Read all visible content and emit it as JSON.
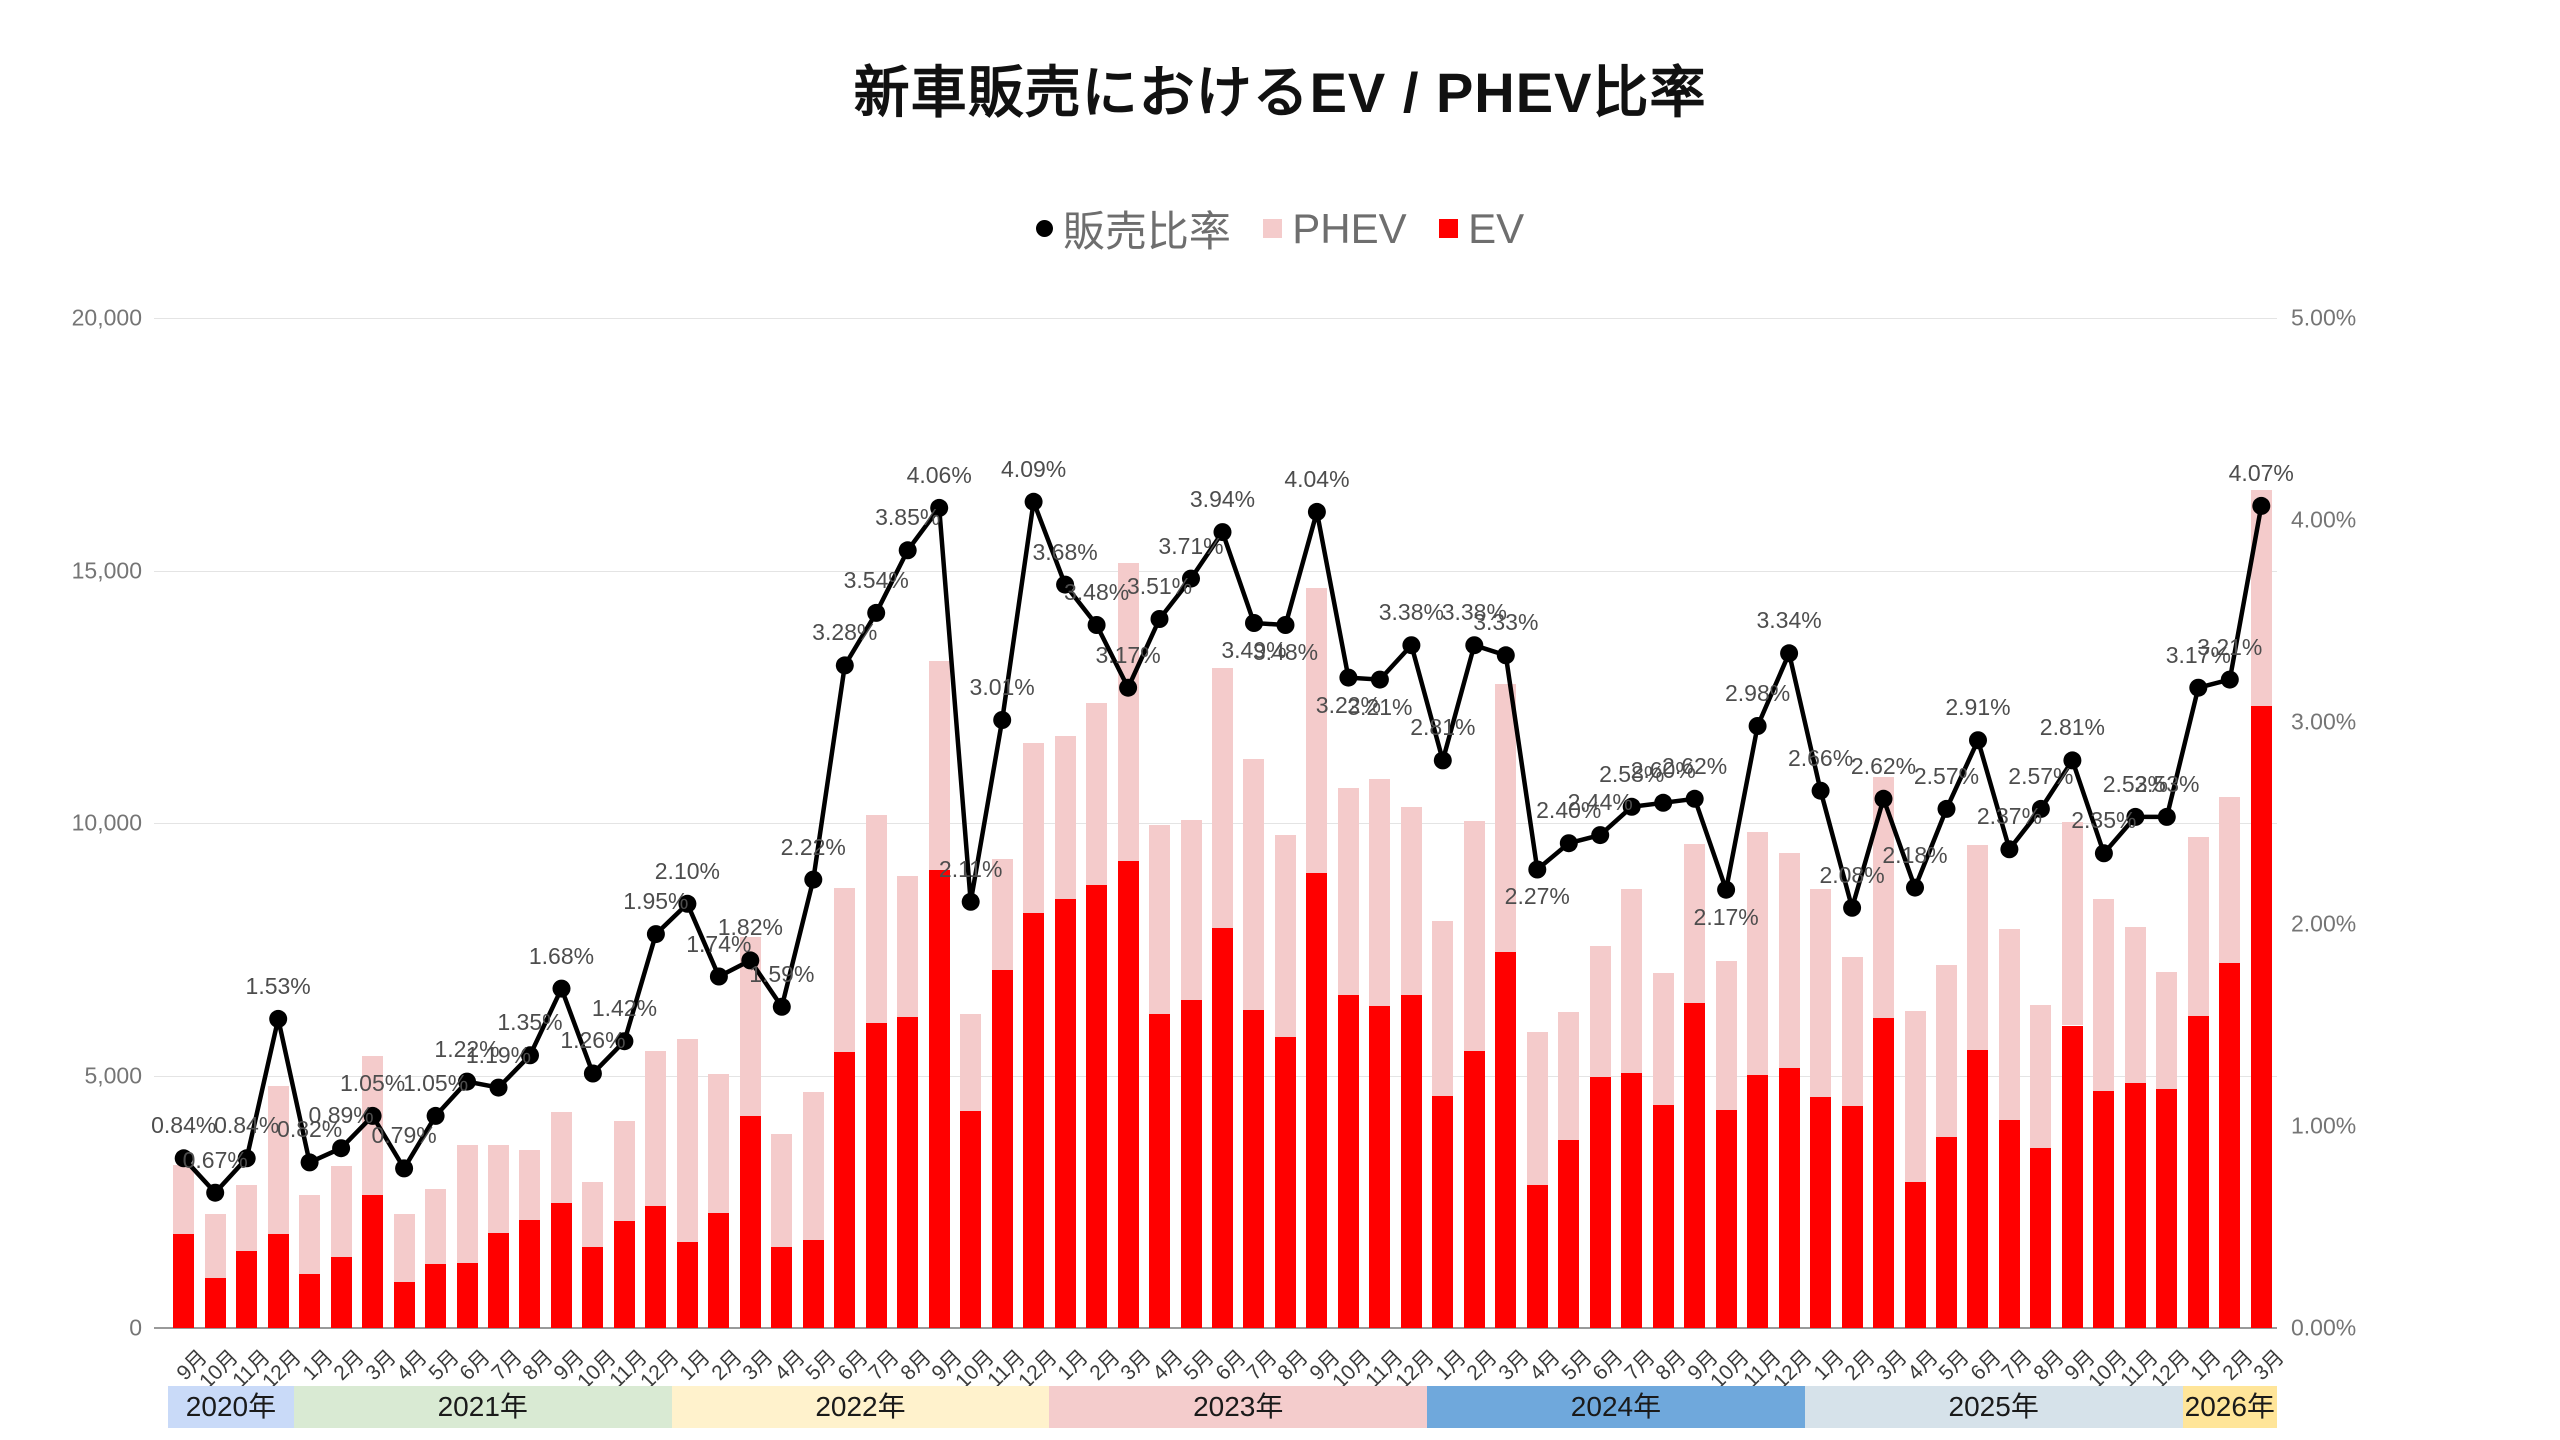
{
  "title": "新車販売におけるEV / PHEV比率",
  "legend": {
    "ratio_label": "販売比率",
    "phev_label": "PHEV",
    "ev_label": "EV"
  },
  "colors": {
    "ev": "#ff0000",
    "phev": "#f4cbcb",
    "line": "#000000",
    "grid": "#e4e4e4",
    "axis_text": "#757575",
    "data_label": "#4d4d4d"
  },
  "chart_data": {
    "type": "combo_stacked_bar_line",
    "title": "新車販売におけるEV / PHEV比率",
    "stacked": true,
    "grid": "horizontal",
    "legend_position": "top",
    "categories": [
      "9月",
      "10月",
      "11月",
      "12月",
      "1月",
      "2月",
      "3月",
      "4月",
      "5月",
      "6月",
      "7月",
      "8月",
      "9月",
      "10月",
      "11月",
      "12月",
      "1月",
      "2月",
      "3月",
      "4月",
      "5月",
      "6月",
      "7月",
      "8月",
      "9月",
      "10月",
      "11月",
      "12月",
      "1月",
      "2月",
      "3月",
      "4月",
      "5月",
      "6月",
      "7月",
      "8月",
      "9月",
      "10月",
      "11月",
      "12月",
      "1月",
      "2月",
      "3月",
      "4月",
      "5月",
      "6月",
      "7月",
      "8月",
      "9月",
      "10月",
      "11月",
      "12月",
      "1月",
      "2月",
      "3月",
      "4月",
      "5月",
      "6月",
      "7月",
      "8月",
      "9月",
      "10月",
      "11月",
      "12月",
      "1月",
      "2月",
      "3月"
    ],
    "series": [
      {
        "name": "EV",
        "type": "bar",
        "axis": "left",
        "color": "#ff0000",
        "values": [
          1870,
          1000,
          1530,
          1870,
          1060,
          1410,
          2640,
          920,
          1260,
          1280,
          1890,
          2130,
          2480,
          1610,
          2110,
          2410,
          1700,
          2270,
          4200,
          1610,
          1740,
          5460,
          6040,
          6160,
          9070,
          4290,
          7080,
          8210,
          8500,
          8780,
          9250,
          6210,
          6500,
          7920,
          6290,
          5770,
          9010,
          6600,
          6370,
          6600,
          4600,
          5480,
          7440,
          2840,
          3730,
          4970,
          5050,
          4410,
          6430,
          4320,
          5010,
          5150,
          4570,
          4390,
          6140,
          2900,
          3790,
          5500,
          4120,
          3570,
          5990,
          4700,
          4850,
          4740,
          6170,
          7230,
          12310
        ]
      },
      {
        "name": "PHEV",
        "type": "bar",
        "axis": "left",
        "color": "#f4cbcb",
        "values": [
          1360,
          1250,
          1310,
          2930,
          1580,
          1790,
          2750,
          1330,
          1500,
          2340,
          1730,
          1390,
          1800,
          1280,
          1980,
          3070,
          4030,
          2760,
          3550,
          2240,
          2930,
          3260,
          4110,
          2800,
          4130,
          1930,
          2200,
          3370,
          3230,
          3600,
          5890,
          3750,
          3550,
          5140,
          4980,
          3990,
          5640,
          4100,
          4500,
          3710,
          3450,
          4550,
          5320,
          3030,
          2520,
          2600,
          3650,
          2610,
          3160,
          2940,
          4810,
          4250,
          4130,
          2960,
          4770,
          3370,
          3390,
          4070,
          3780,
          2820,
          4030,
          3800,
          3100,
          2310,
          3560,
          3280,
          4280
        ]
      },
      {
        "name": "販売比率",
        "type": "line",
        "axis": "right",
        "color": "#000000",
        "values": [
          0.84,
          0.67,
          0.84,
          1.53,
          0.82,
          0.89,
          1.05,
          0.79,
          1.05,
          1.22,
          1.19,
          1.35,
          1.68,
          1.26,
          1.42,
          1.95,
          2.1,
          1.74,
          1.82,
          1.59,
          2.22,
          3.28,
          3.54,
          3.85,
          4.06,
          2.11,
          3.01,
          4.09,
          3.68,
          3.48,
          3.17,
          3.51,
          3.71,
          3.94,
          3.49,
          3.48,
          4.04,
          3.22,
          3.21,
          3.38,
          2.81,
          3.38,
          3.33,
          2.27,
          2.4,
          2.44,
          2.58,
          2.6,
          2.62,
          2.17,
          2.98,
          3.34,
          2.66,
          2.08,
          2.62,
          2.18,
          2.57,
          2.91,
          2.37,
          2.57,
          2.81,
          2.35,
          2.53,
          2.53,
          3.17,
          3.21,
          4.07
        ]
      }
    ],
    "label_below_indices": [
      34,
      35,
      37,
      38,
      43,
      49
    ],
    "left_axis": {
      "min": 0,
      "max": 20000,
      "ticks": [
        "0",
        "5,000",
        "10,000",
        "15,000",
        "20,000"
      ]
    },
    "right_axis": {
      "min": 0,
      "max": 5,
      "ticks": [
        "0.00%",
        "1.00%",
        "2.00%",
        "3.00%",
        "4.00%",
        "5.00%"
      ]
    },
    "year_bands": [
      {
        "label": "2020年",
        "color": "#c9daf8",
        "start": 0,
        "count": 4
      },
      {
        "label": "2021年",
        "color": "#d9ead3",
        "start": 4,
        "count": 12
      },
      {
        "label": "2022年",
        "color": "#fff2cc",
        "start": 16,
        "count": 12
      },
      {
        "label": "2023年",
        "color": "#f4cccc",
        "start": 28,
        "count": 12
      },
      {
        "label": "2024年",
        "color": "#6fa8dc",
        "start": 40,
        "count": 12
      },
      {
        "label": "2025年",
        "color": "#d6e2ea",
        "start": 52,
        "count": 12
      },
      {
        "label": "2026年",
        "color": "#ffe599",
        "start": 64,
        "count": 3
      }
    ]
  },
  "layout_note": ""
}
